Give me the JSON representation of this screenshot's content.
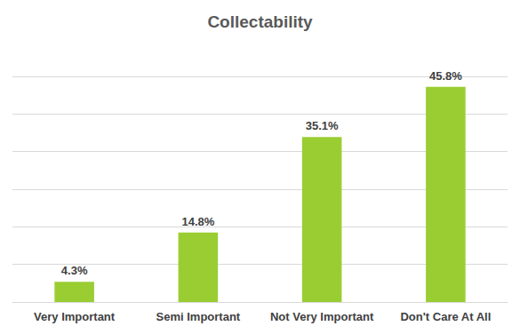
{
  "chart_data": {
    "type": "bar",
    "title": "Collectability",
    "categories": [
      "Very Important",
      "Semi Important",
      "Not Very Important",
      "Don't Care At All"
    ],
    "values": [
      4.3,
      14.8,
      35.1,
      45.8
    ],
    "value_labels": [
      "4.3%",
      "14.8%",
      "35.1%",
      "45.8%"
    ],
    "color": "#9acd32",
    "ylim": [
      0,
      48
    ],
    "yticks": [
      0,
      8,
      16,
      24,
      32,
      40,
      48
    ],
    "grid": true,
    "data_labels": true,
    "tick_labels": "x"
  }
}
